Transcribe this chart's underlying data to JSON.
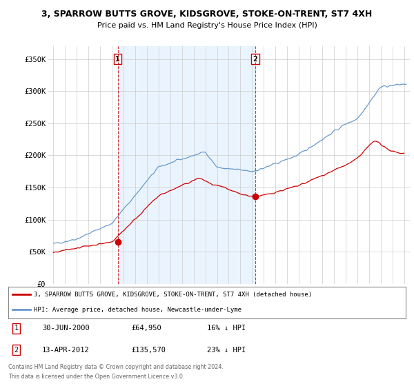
{
  "title": "3, SPARROW BUTTS GROVE, KIDSGROVE, STOKE-ON-TRENT, ST7 4XH",
  "subtitle": "Price paid vs. HM Land Registry's House Price Index (HPI)",
  "ylabel_ticks": [
    "£0",
    "£50K",
    "£100K",
    "£150K",
    "£200K",
    "£250K",
    "£300K",
    "£350K"
  ],
  "ytick_vals": [
    0,
    50000,
    100000,
    150000,
    200000,
    250000,
    300000,
    350000
  ],
  "ylim": [
    0,
    370000
  ],
  "xlim_start": 1994.5,
  "xlim_end": 2025.5,
  "line1_color": "#cc0000",
  "line2_color": "#6699cc",
  "marker1_date": 2000.5,
  "marker1_price": 64950,
  "marker2_date": 2012.28,
  "marker2_price": 135570,
  "vline1_x": 2000.5,
  "vline2_x": 2012.28,
  "shade_color": "#ddeeff",
  "legend_line1": "3, SPARROW BUTTS GROVE, KIDSGROVE, STOKE-ON-TRENT, ST7 4XH (detached house)",
  "legend_line2": "HPI: Average price, detached house, Newcastle-under-Lyme",
  "table_row1": [
    "1",
    "30-JUN-2000",
    "£64,950",
    "16% ↓ HPI"
  ],
  "table_row2": [
    "2",
    "13-APR-2012",
    "£135,570",
    "23% ↓ HPI"
  ],
  "footer1": "Contains HM Land Registry data © Crown copyright and database right 2024.",
  "footer2": "This data is licensed under the Open Government Licence v3.0.",
  "background_color": "#ffffff",
  "plot_bg_color": "#ffffff"
}
